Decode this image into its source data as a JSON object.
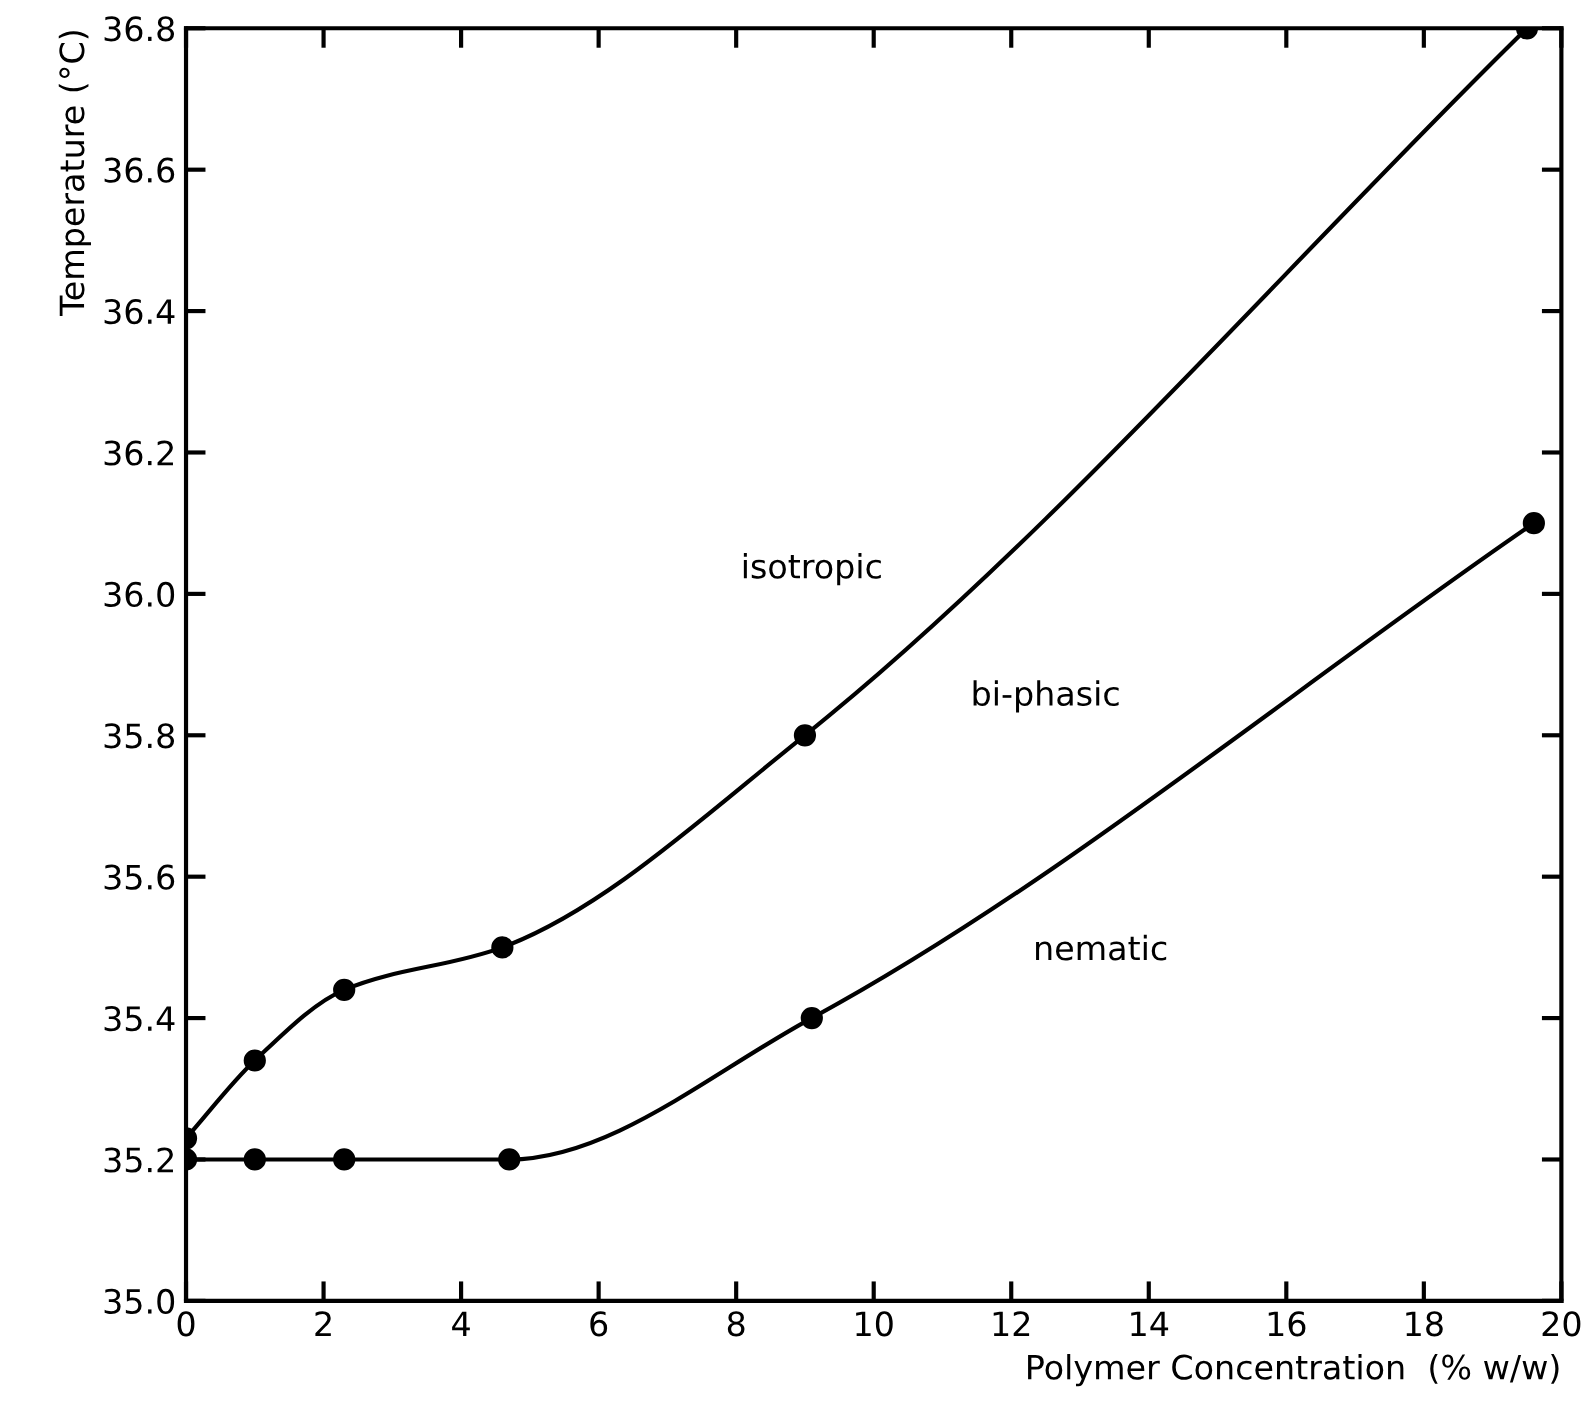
{
  "chart_data": {
    "type": "line",
    "xlabel": "Polymer Concentration  (% w/w)",
    "ylabel": "Temperature (°C)",
    "series": [
      {
        "x": [
          0,
          1.0,
          2.3,
          4.6,
          9.0,
          19.5
        ],
        "values": [
          35.23,
          35.34,
          35.44,
          35.5,
          35.8,
          36.8
        ],
        "color": "#000000"
      },
      {
        "x": [
          0,
          1.0,
          2.3,
          4.7,
          9.1,
          19.6
        ],
        "values": [
          35.2,
          35.2,
          35.2,
          35.2,
          35.4,
          36.1
        ],
        "color": "#000000"
      }
    ],
    "xlim": [
      0,
      20
    ],
    "xticks": [
      0,
      2,
      4,
      6,
      8,
      10,
      12,
      14,
      16,
      18,
      20
    ],
    "ylim": [
      35.0,
      36.8
    ],
    "yticks": [
      {
        "value": 35.0,
        "label": "35.0"
      },
      35.2,
      35.4,
      35.6,
      35.8,
      {
        "value": 36.0,
        "label": "36.0"
      },
      36.2,
      36.4,
      36.6,
      36.8
    ],
    "annotations": [
      "isotropic",
      "bi-phasic",
      "nematic"
    ],
    "marker": "circle",
    "line_style": "solid",
    "grid": false
  }
}
